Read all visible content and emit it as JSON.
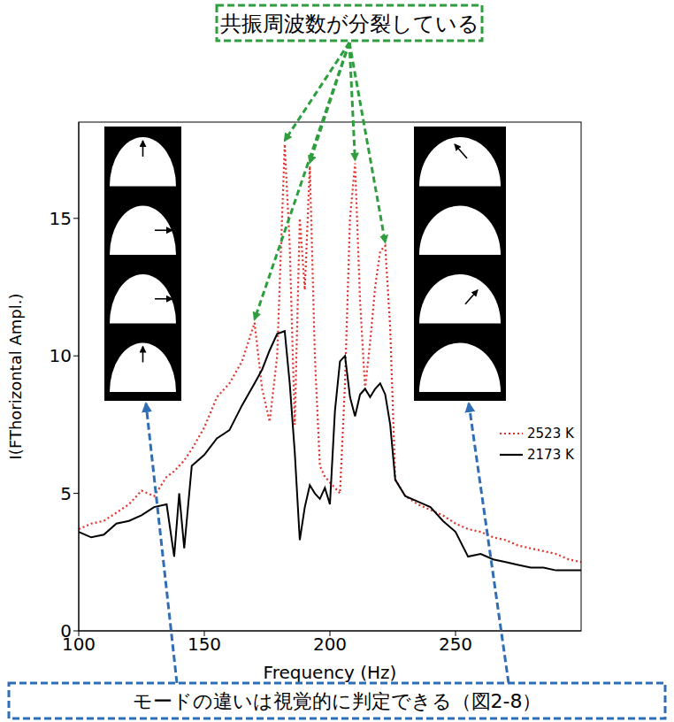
{
  "chart_data": {
    "type": "line",
    "x_label": "Frequency (Hz)",
    "y_label": "I(FThorizontal Ampl.)",
    "x": [
      100,
      105,
      110,
      115,
      120,
      125,
      130,
      135,
      138,
      140,
      142,
      145,
      150,
      155,
      160,
      165,
      170,
      173,
      176,
      179,
      182,
      184,
      186,
      188,
      190,
      192,
      194,
      196,
      198,
      200,
      202,
      204,
      206,
      208,
      210,
      212,
      214,
      216,
      218,
      220,
      222,
      224,
      226,
      230,
      235,
      240,
      245,
      250,
      255,
      260,
      265,
      270,
      275,
      280,
      285,
      290,
      295,
      300
    ],
    "series": [
      {
        "name": "2523 K",
        "color": "#e0322a",
        "line_style": "dotted",
        "values": [
          3.7,
          3.9,
          4.0,
          4.3,
          4.6,
          5.1,
          4.9,
          5.6,
          5.8,
          6.0,
          6.2,
          6.6,
          7.4,
          8.5,
          9.0,
          9.8,
          11.2,
          8.8,
          7.6,
          10.0,
          17.7,
          14.0,
          7.5,
          15.0,
          12.4,
          16.9,
          10.0,
          6.0,
          5.6,
          5.4,
          5.2,
          5.0,
          9.0,
          15.0,
          17.0,
          12.0,
          8.8,
          10.5,
          12.5,
          13.8,
          14.0,
          11.0,
          5.5,
          4.9,
          4.6,
          4.4,
          4.2,
          3.9,
          3.7,
          3.6,
          3.4,
          3.3,
          3.1,
          3.0,
          2.9,
          2.8,
          2.6,
          2.5
        ]
      },
      {
        "name": "2173 K",
        "color": "#000000",
        "line_style": "solid",
        "values": [
          3.6,
          3.4,
          3.5,
          3.9,
          4.0,
          4.2,
          4.5,
          4.6,
          2.7,
          5.0,
          3.0,
          6.0,
          6.4,
          7.0,
          7.3,
          8.2,
          9.0,
          9.5,
          10.2,
          10.8,
          10.9,
          9.0,
          6.5,
          3.3,
          4.5,
          5.3,
          5.0,
          4.8,
          5.2,
          4.6,
          8.0,
          9.8,
          10.0,
          8.5,
          7.8,
          8.6,
          8.8,
          8.5,
          8.8,
          9.0,
          8.6,
          7.5,
          5.5,
          4.9,
          4.7,
          4.5,
          4.0,
          3.6,
          2.7,
          2.8,
          2.6,
          2.5,
          2.4,
          2.3,
          2.3,
          2.2,
          2.2,
          2.2
        ]
      }
    ],
    "xlim": [
      100,
      300
    ],
    "xticks": [
      100,
      150,
      200,
      250
    ],
    "ylim": [
      0,
      18.5
    ],
    "yticks": [
      0,
      5,
      10,
      15
    ],
    "grid": false,
    "legend": "lower right",
    "annotations": [
      {
        "text": "共振周波数が分裂している",
        "points": [
          [
            170,
            11.2
          ],
          [
            182,
            17.7
          ],
          [
            192,
            16.9
          ],
          [
            210,
            17.0
          ],
          [
            222,
            14.0
          ]
        ]
      },
      {
        "text": "モードの違いは視覚的に判定できる（図2-8）"
      }
    ]
  }
}
